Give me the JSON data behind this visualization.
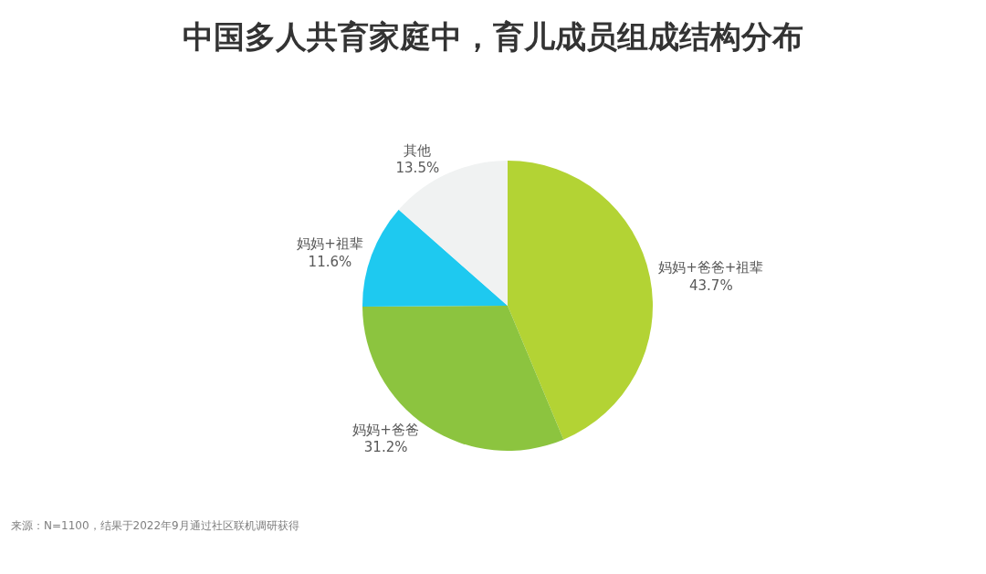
{
  "chart_data": {
    "type": "pie",
    "title": "中国多人共育家庭中，育儿成员组成结构分布",
    "categories": [
      "妈妈+爸爸+祖辈",
      "妈妈+爸爸",
      "妈妈+祖辈",
      "其他"
    ],
    "values": [
      43.7,
      31.2,
      11.6,
      13.5
    ],
    "value_labels": [
      "43.7%",
      "31.2%",
      "11.6%",
      "13.5%"
    ],
    "colors": [
      "#b3d334",
      "#8cc43f",
      "#1ec9f0",
      "#f0f2f2"
    ],
    "legend": false,
    "annotations": [
      "来源：N=1100，结果于2022年9月通过社区联机调研获得"
    ]
  }
}
